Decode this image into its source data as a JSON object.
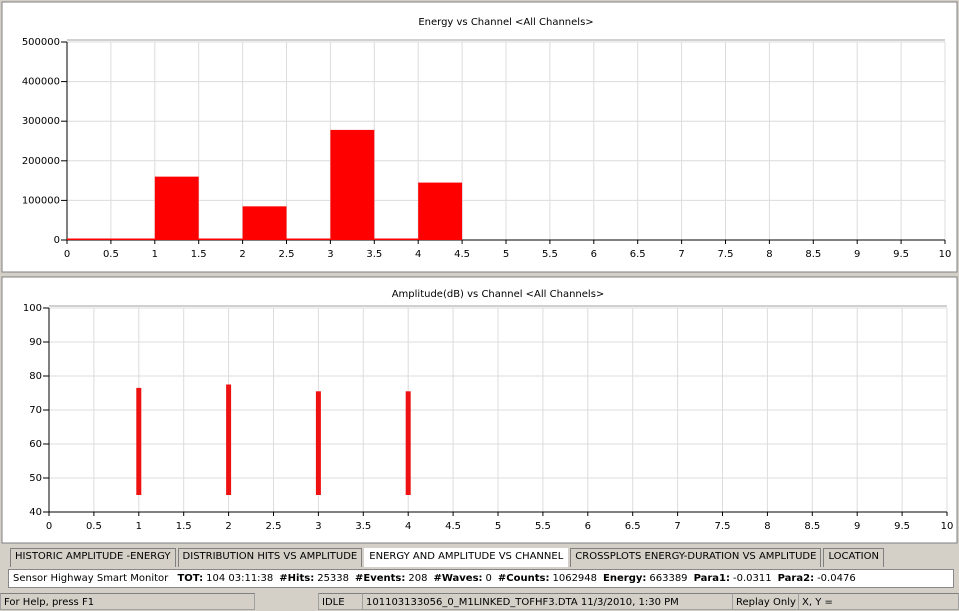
{
  "chart_data": [
    {
      "type": "histogram",
      "title": "Energy vs Channel <All Channels>",
      "bins": [
        0,
        0.5,
        1,
        1.5,
        2,
        2.5,
        3,
        3.5,
        4,
        4.5
      ],
      "counts": [
        0,
        0,
        160000,
        0,
        85000,
        0,
        278000,
        0,
        145000
      ],
      "color": "#ff0000",
      "xlim": [
        0,
        10
      ],
      "xticks": [
        0,
        0.5,
        1,
        1.5,
        2,
        2.5,
        3,
        3.5,
        4,
        4.5,
        5,
        5.5,
        6,
        6.5,
        7,
        7.5,
        8,
        8.5,
        9,
        9.5,
        10
      ],
      "ylim": [
        0,
        500000
      ],
      "yticks": [
        0,
        100000,
        200000,
        300000,
        400000,
        500000
      ],
      "grid": true
    },
    {
      "type": "range",
      "title": "Amplitude(dB) vs Channel <All Channels>",
      "x": [
        1,
        2,
        3,
        4
      ],
      "low": [
        45,
        45,
        45,
        45
      ],
      "high": [
        76.5,
        77.5,
        75.5,
        75.5
      ],
      "color": "#ee1111",
      "xlim": [
        0,
        10
      ],
      "xticks": [
        0,
        0.5,
        1,
        1.5,
        2,
        2.5,
        3,
        3.5,
        4,
        4.5,
        5,
        5.5,
        6,
        6.5,
        7,
        7.5,
        8,
        8.5,
        9,
        9.5,
        10
      ],
      "ylim": [
        40,
        100
      ],
      "yticks": [
        40,
        50,
        60,
        70,
        80,
        90,
        100
      ],
      "grid": true
    }
  ],
  "tabs": [
    "HISTORIC AMPLITUDE -ENERGY",
    "DISTRIBUTION HITS VS AMPLITUDE",
    "ENERGY AND AMPLITUDE VS CHANNEL",
    "CROSSPLOTS ENERGY-DURATION VS AMPLITUDE",
    "LOCATION"
  ],
  "active_tab": 2,
  "status_line": {
    "app": "Sensor Highway Smart Monitor",
    "items": [
      {
        "label": "TOT:",
        "value": "104 03:11:38"
      },
      {
        "label": "#Hits:",
        "value": "25338"
      },
      {
        "label": "#Events:",
        "value": "208"
      },
      {
        "label": "#Waves:",
        "value": "0"
      },
      {
        "label": "#Counts:",
        "value": "1062948"
      },
      {
        "label": "Energy:",
        "value": "663389"
      },
      {
        "label": "Para1:",
        "value": "-0.0311"
      },
      {
        "label": "Para2:",
        "value": "-0.0476"
      }
    ]
  },
  "status_bar": {
    "help": "For Help, press F1",
    "state": "IDLE",
    "file": "101103133056_0_M1LINKED_TOFHF3.DTA  11/3/2010, 1:30 PM",
    "mode": "Replay Only",
    "coords": "X, Y ="
  }
}
